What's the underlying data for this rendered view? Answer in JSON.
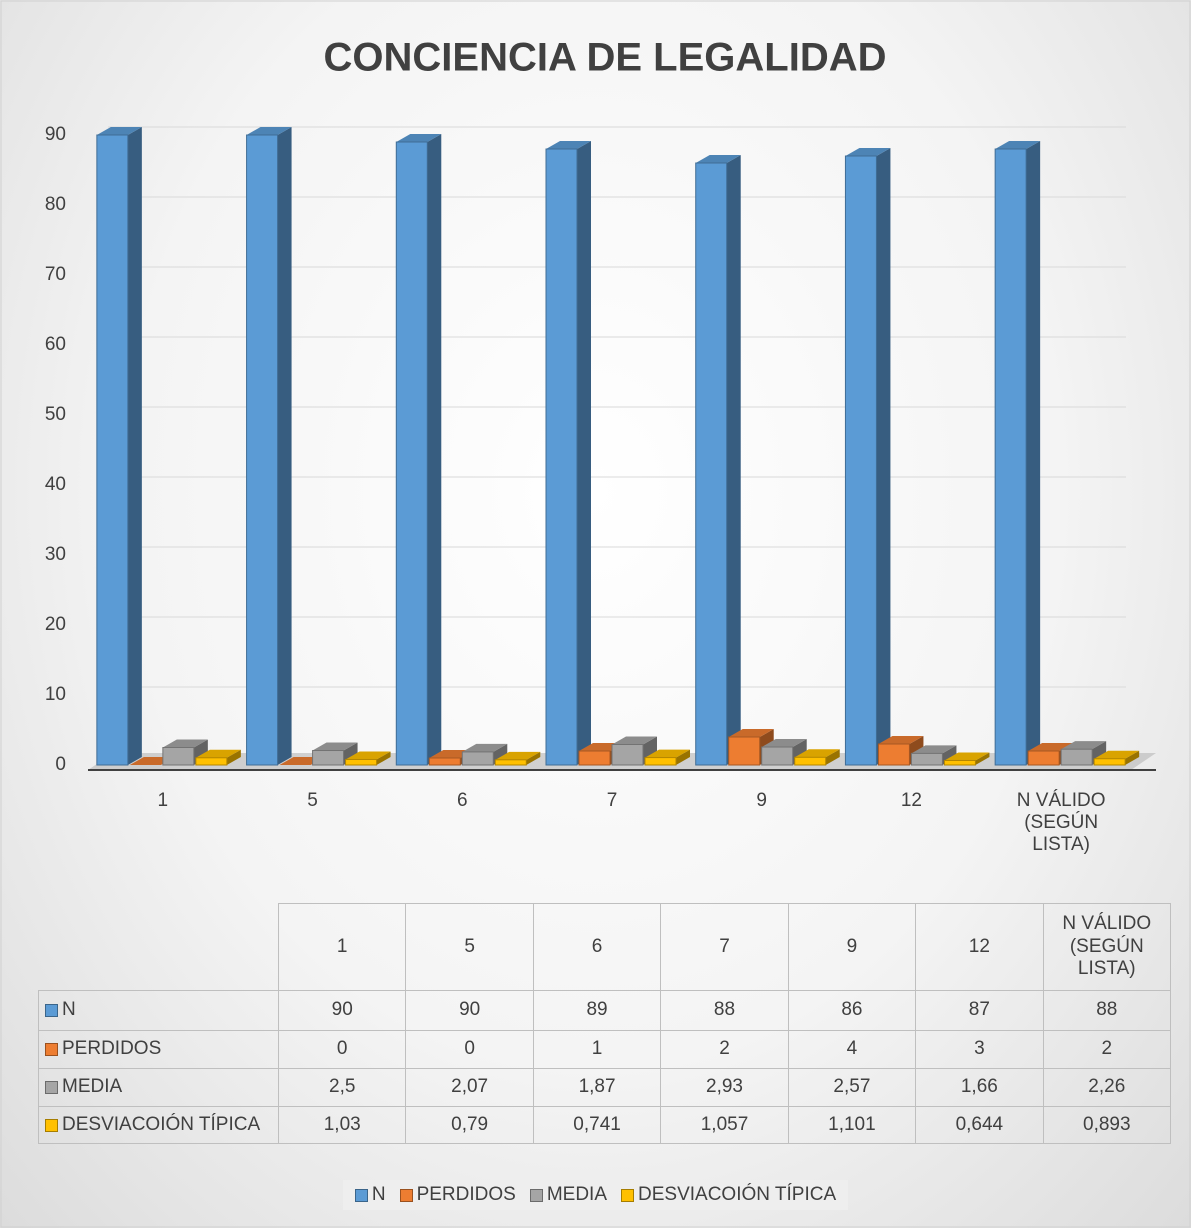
{
  "chart_data": {
    "type": "bar3d",
    "title": "CONCIENCIA DE LEGALIDAD",
    "categories": [
      "1",
      "5",
      "6",
      "7",
      "9",
      "12",
      "N VÁLIDO (SEGÚN LISTA)"
    ],
    "series": [
      {
        "name": "N",
        "color": "#5b9bd5",
        "values": [
          90,
          90,
          89,
          88,
          86,
          87,
          88
        ]
      },
      {
        "name": "PERDIDOS",
        "color": "#ed7d31",
        "values": [
          0,
          0,
          1,
          2,
          4,
          3,
          2
        ]
      },
      {
        "name": "MEDIA",
        "color": "#a5a5a5",
        "values": [
          2.5,
          2.07,
          1.87,
          2.93,
          2.57,
          1.66,
          2.26
        ],
        "value_labels": [
          "2,5",
          "2,07",
          "1,87",
          "2,93",
          "2,57",
          "1,66",
          "2,26"
        ]
      },
      {
        "name": "DESVIACOIÓN TÍPICA",
        "color": "#ffc000",
        "values": [
          1.03,
          0.79,
          0.741,
          1.057,
          1.101,
          0.644,
          0.893
        ],
        "value_labels": [
          "1,03",
          "0,79",
          "0,741",
          "1,057",
          "1,101",
          "0,644",
          "0,893"
        ]
      }
    ],
    "ylim": [
      0,
      90
    ],
    "yticks": [
      0,
      10,
      20,
      30,
      40,
      50,
      60,
      70,
      80,
      90
    ],
    "grid": true,
    "legend": "bottom"
  }
}
